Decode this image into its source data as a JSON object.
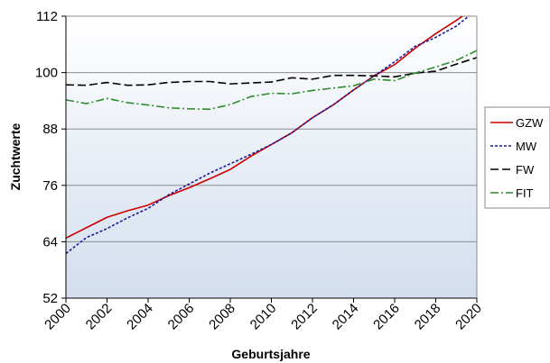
{
  "chart_data": {
    "type": "line",
    "title": "",
    "xlabel": "Geburtsjahre",
    "ylabel": "Zuchtwerte",
    "xlim": [
      2000,
      2020
    ],
    "ylim": [
      52,
      112
    ],
    "x_ticks": [
      "2000",
      "2002",
      "2004",
      "2006",
      "2008",
      "2010",
      "2012",
      "2014",
      "2016",
      "2018",
      "2020"
    ],
    "y_ticks": [
      "52",
      "64",
      "76",
      "88",
      "100",
      "112"
    ],
    "grid": "horizontal",
    "background": "vertical gradient, white to light blue",
    "legend_position": "right",
    "x": [
      2000,
      2001,
      2002,
      2003,
      2004,
      2005,
      2006,
      2007,
      2008,
      2009,
      2010,
      2011,
      2012,
      2013,
      2014,
      2015,
      2016,
      2017,
      2018,
      2019,
      2020
    ],
    "series": [
      {
        "name": "GZW",
        "color": "#cc0000",
        "style": "solid",
        "values": [
          64.8,
          67.0,
          69.2,
          70.6,
          71.8,
          73.8,
          75.5,
          77.4,
          79.4,
          82.2,
          84.7,
          87.2,
          90.4,
          93.1,
          96.3,
          99.3,
          101.7,
          105.2,
          108.3,
          111.1,
          114.2
        ]
      },
      {
        "name": "MW",
        "color": "#1a1a99",
        "style": "dotted",
        "values": [
          61.5,
          64.9,
          66.8,
          69.1,
          71.1,
          74.0,
          76.3,
          78.6,
          80.6,
          82.6,
          84.7,
          87.2,
          90.4,
          93.1,
          96.3,
          99.3,
          102.3,
          105.6,
          107.5,
          109.9,
          113.4
        ]
      },
      {
        "name": "FW",
        "color": "#000000",
        "style": "dashed",
        "values": [
          97.4,
          97.3,
          97.9,
          97.3,
          97.4,
          97.9,
          98.1,
          98.1,
          97.6,
          97.8,
          98.0,
          98.9,
          98.6,
          99.4,
          99.4,
          99.3,
          99.1,
          99.9,
          100.3,
          101.8,
          103.2
        ]
      },
      {
        "name": "FIT",
        "color": "#2e8b2e",
        "style": "dashdot",
        "values": [
          94.2,
          93.4,
          94.5,
          93.6,
          93.1,
          92.5,
          92.3,
          92.2,
          93.2,
          94.9,
          95.6,
          95.5,
          96.2,
          96.7,
          97.2,
          98.6,
          98.3,
          99.9,
          101.2,
          102.6,
          104.7
        ]
      }
    ]
  }
}
